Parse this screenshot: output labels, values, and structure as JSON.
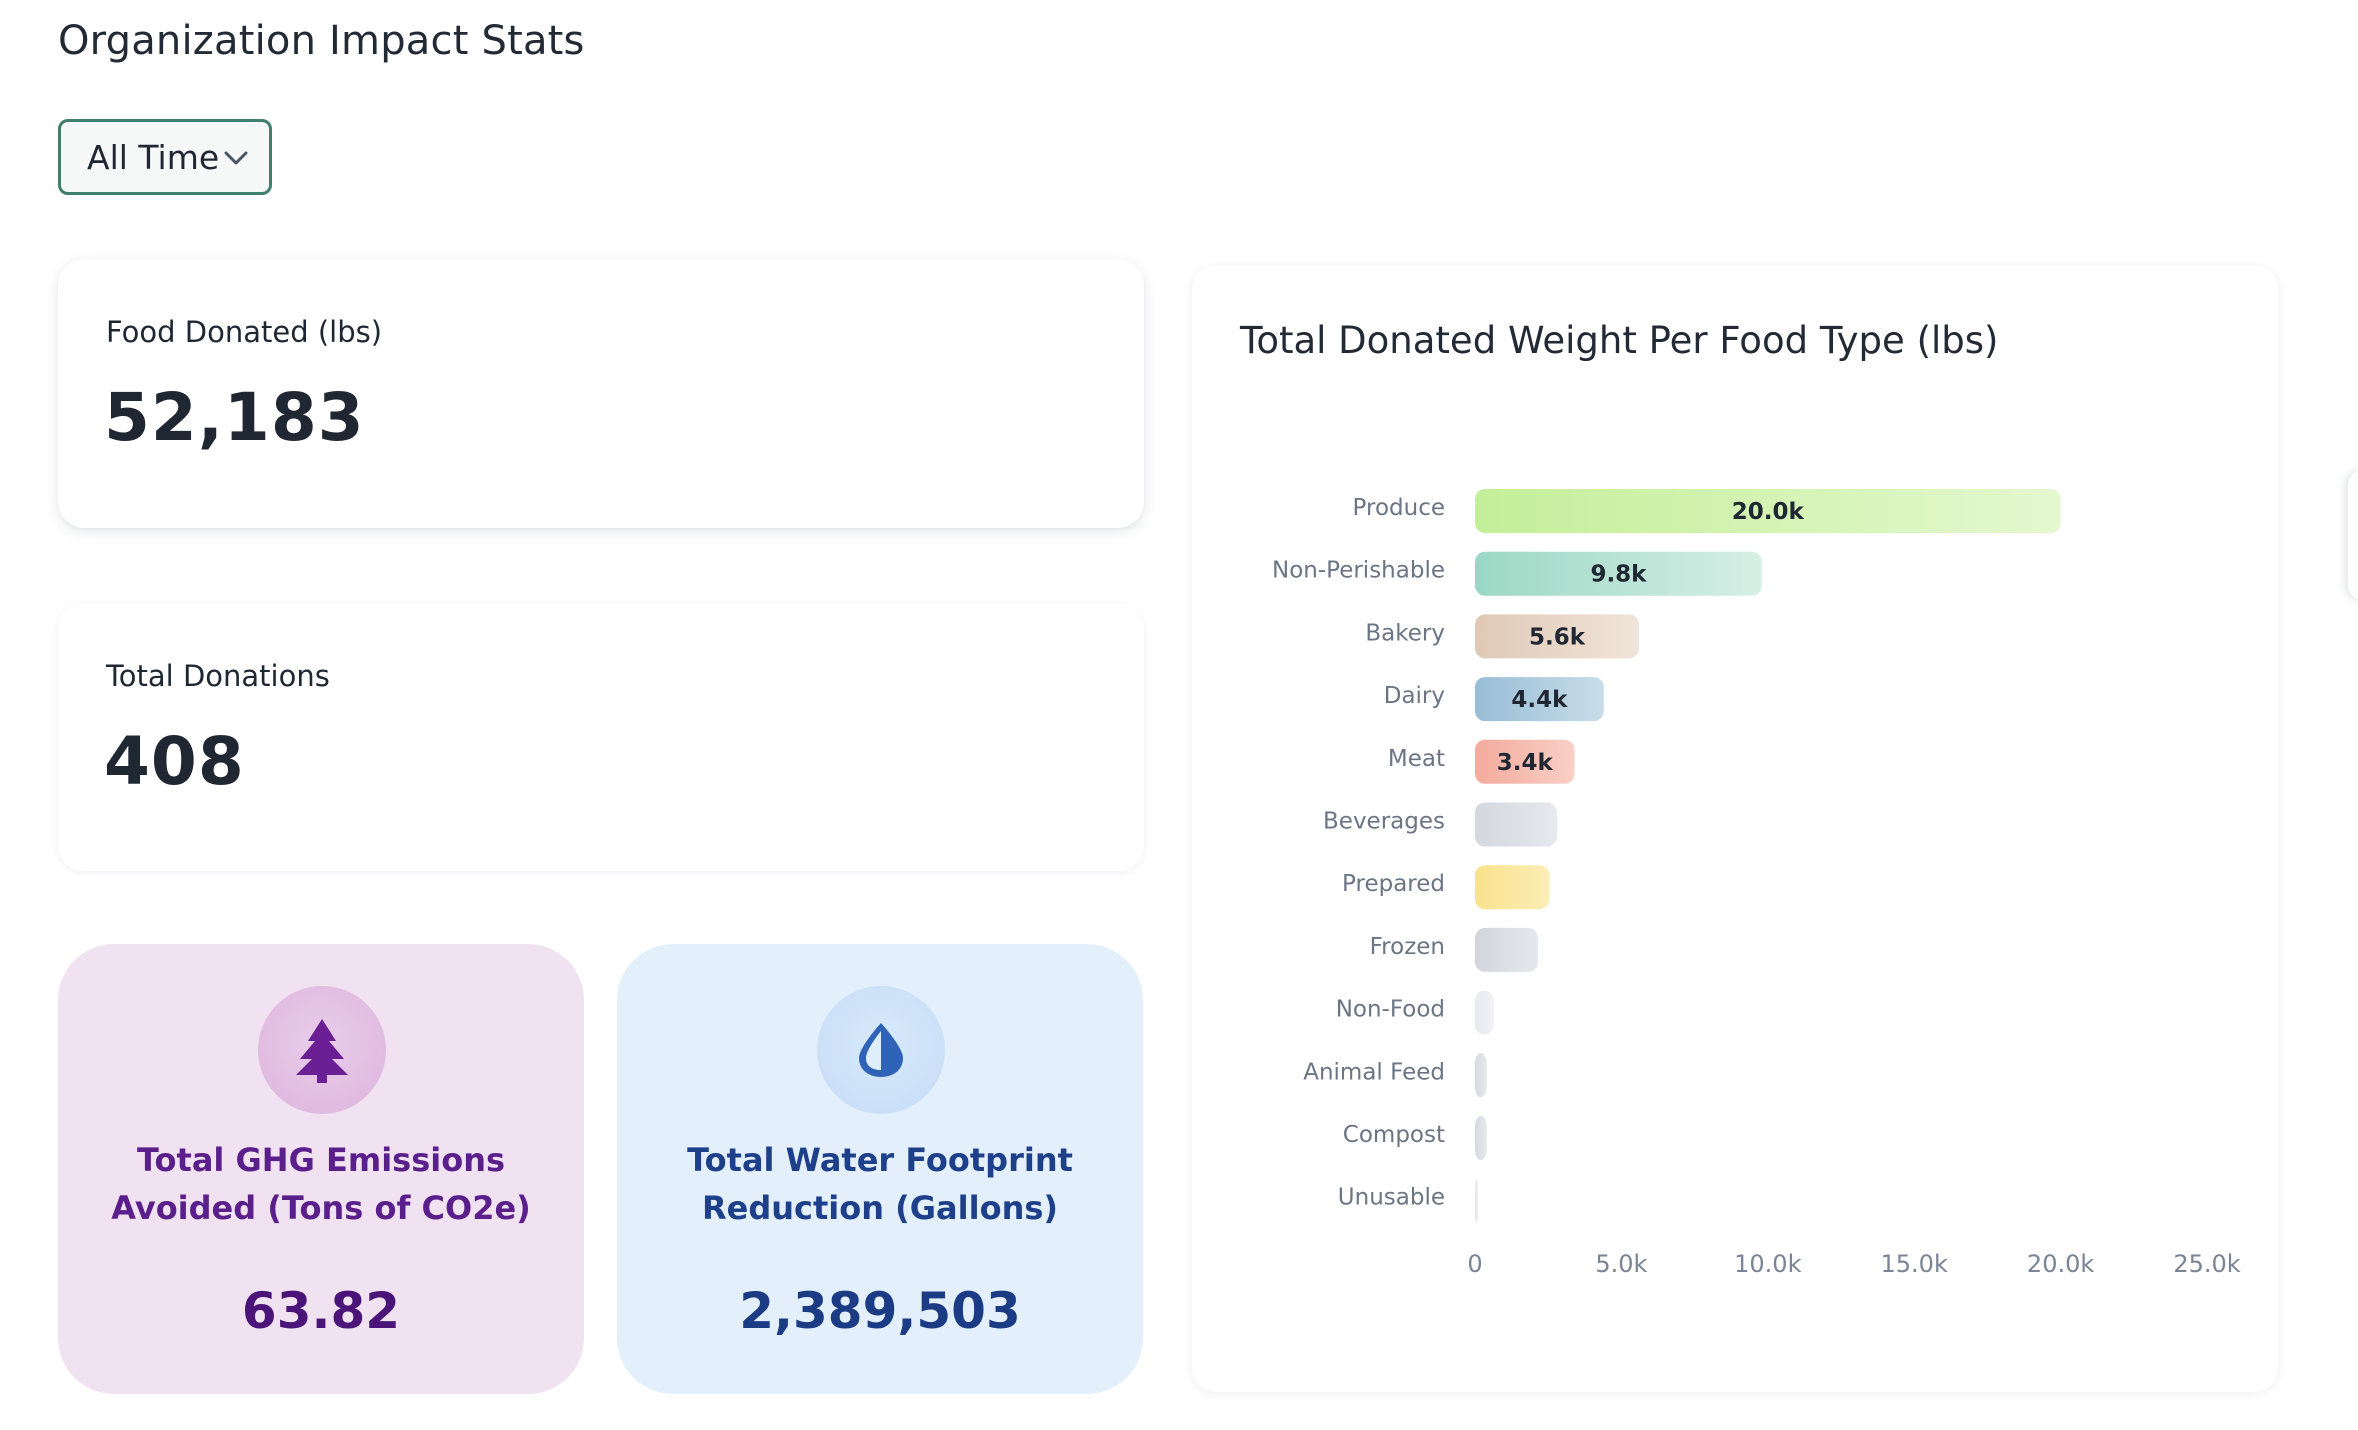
{
  "page": {
    "title": "Organization Impact Stats"
  },
  "filter": {
    "selected": "All Time"
  },
  "stats": {
    "food_donated": {
      "label": "Food Donated (lbs)",
      "value": "52,183"
    },
    "total_donations": {
      "label": "Total Donations",
      "value": "408"
    }
  },
  "impact": {
    "ghg": {
      "icon": "tree-icon",
      "label": "Total GHG Emissions Avoided (Tons of CO2e)",
      "value": "63.82",
      "color": "#5a1f8a"
    },
    "water": {
      "icon": "water-drop-icon",
      "label": "Total Water Footprint Reduction (Gallons)",
      "value": "2,389,503",
      "color": "#1e3f8a"
    }
  },
  "chart": {
    "title": "Total Donated Weight Per Food Type (lbs)"
  },
  "chart_data": {
    "type": "bar",
    "orientation": "horizontal",
    "title": "Total Donated Weight Per Food Type (lbs)",
    "categories": [
      "Produce",
      "Non-Perishable",
      "Bakery",
      "Dairy",
      "Meat",
      "Beverages",
      "Prepared",
      "Frozen",
      "Non-Food",
      "Animal Feed",
      "Compost",
      "Unusable"
    ],
    "values": [
      20000,
      9800,
      5600,
      4400,
      3400,
      2800,
      2550,
      2150,
      650,
      400,
      400,
      100
    ],
    "data_labels": [
      "20.0k",
      "9.8k",
      "5.6k",
      "4.4k",
      "3.4k",
      "",
      "",
      "",
      "",
      "",
      "",
      ""
    ],
    "colors": [
      [
        "#c4ef99",
        "#e4f8cf"
      ],
      [
        "#9ad8c4",
        "#d7efe6"
      ],
      [
        "#e0c9b6",
        "#f0e4da"
      ],
      [
        "#98bdd6",
        "#c8dde9"
      ],
      [
        "#f3ab9c",
        "#f9cfc6"
      ],
      [
        "#d3d8de",
        "#e6e9ed"
      ],
      [
        "#f8e28c",
        "#fbeeb7"
      ],
      [
        "#d2d6dc",
        "#e5e8ec"
      ],
      [
        "#e6e9ed",
        "#f1f3f5"
      ],
      [
        "#d6dadf",
        "#e6e8eb"
      ],
      [
        "#d6dadf",
        "#e6e8eb"
      ],
      [
        "#e3e6ea",
        "#eef0f2"
      ]
    ],
    "xlim": [
      0,
      25000
    ],
    "xticks": [
      "0",
      "5.0k",
      "10.0k",
      "15.0k",
      "20.0k",
      "25.0k"
    ],
    "grid": false,
    "legend": "none"
  }
}
